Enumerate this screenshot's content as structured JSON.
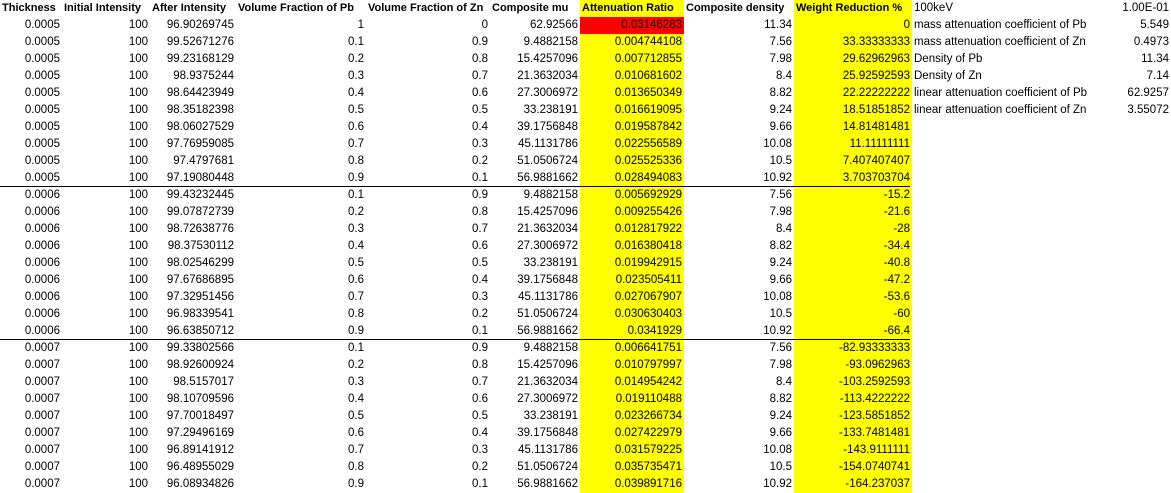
{
  "headers": [
    "Thickness",
    "Initial Intensity",
    "After Intensity",
    "Volume Fraction of Pb",
    "Volume Fraction of Zn",
    "Composite mu",
    "Attenuation Ratio",
    "Composite density",
    "Weight Reduction %"
  ],
  "rows": [
    [
      "0.0005",
      "100",
      "96.90269745",
      "1",
      "0",
      "62.92566",
      "0.03146283",
      "11.34",
      "0"
    ],
    [
      "0.0005",
      "100",
      "99.52671276",
      "0.1",
      "0.9",
      "9.4882158",
      "0.004744108",
      "7.56",
      "33.33333333"
    ],
    [
      "0.0005",
      "100",
      "99.23168129",
      "0.2",
      "0.8",
      "15.4257096",
      "0.007712855",
      "7.98",
      "29.62962963"
    ],
    [
      "0.0005",
      "100",
      "98.9375244",
      "0.3",
      "0.7",
      "21.3632034",
      "0.010681602",
      "8.4",
      "25.92592593"
    ],
    [
      "0.0005",
      "100",
      "98.64423949",
      "0.4",
      "0.6",
      "27.3006972",
      "0.013650349",
      "8.82",
      "22.22222222"
    ],
    [
      "0.0005",
      "100",
      "98.35182398",
      "0.5",
      "0.5",
      "33.238191",
      "0.016619095",
      "9.24",
      "18.51851852"
    ],
    [
      "0.0005",
      "100",
      "98.06027529",
      "0.6",
      "0.4",
      "39.1756848",
      "0.019587842",
      "9.66",
      "14.81481481"
    ],
    [
      "0.0005",
      "100",
      "97.76959085",
      "0.7",
      "0.3",
      "45.1131786",
      "0.022556589",
      "10.08",
      "11.11111111"
    ],
    [
      "0.0005",
      "100",
      "97.4797681",
      "0.8",
      "0.2",
      "51.0506724",
      "0.025525336",
      "10.5",
      "7.407407407"
    ],
    [
      "0.0005",
      "100",
      "97.19080448",
      "0.9",
      "0.1",
      "56.9881662",
      "0.028494083",
      "10.92",
      "3.703703704"
    ],
    [
      "0.0006",
      "100",
      "99.43232445",
      "0.1",
      "0.9",
      "9.4882158",
      "0.005692929",
      "7.56",
      "-15.2"
    ],
    [
      "0.0006",
      "100",
      "99.07872739",
      "0.2",
      "0.8",
      "15.4257096",
      "0.009255426",
      "7.98",
      "-21.6"
    ],
    [
      "0.0006",
      "100",
      "98.72638776",
      "0.3",
      "0.7",
      "21.3632034",
      "0.012817922",
      "8.4",
      "-28"
    ],
    [
      "0.0006",
      "100",
      "98.37530112",
      "0.4",
      "0.6",
      "27.3006972",
      "0.016380418",
      "8.82",
      "-34.4"
    ],
    [
      "0.0006",
      "100",
      "98.02546299",
      "0.5",
      "0.5",
      "33.238191",
      "0.019942915",
      "9.24",
      "-40.8"
    ],
    [
      "0.0006",
      "100",
      "97.67686895",
      "0.6",
      "0.4",
      "39.1756848",
      "0.023505411",
      "9.66",
      "-47.2"
    ],
    [
      "0.0006",
      "100",
      "97.32951456",
      "0.7",
      "0.3",
      "45.1131786",
      "0.027067907",
      "10.08",
      "-53.6"
    ],
    [
      "0.0006",
      "100",
      "96.98339541",
      "0.8",
      "0.2",
      "51.0506724",
      "0.030630403",
      "10.5",
      "-60"
    ],
    [
      "0.0006",
      "100",
      "96.63850712",
      "0.9",
      "0.1",
      "56.9881662",
      "0.0341929",
      "10.92",
      "-66.4"
    ],
    [
      "0.0007",
      "100",
      "99.33802566",
      "0.1",
      "0.9",
      "9.4882158",
      "0.006641751",
      "7.56",
      "-82.93333333"
    ],
    [
      "0.0007",
      "100",
      "98.92600924",
      "0.2",
      "0.8",
      "15.4257096",
      "0.010797997",
      "7.98",
      "-93.0962963"
    ],
    [
      "0.0007",
      "100",
      "98.5157017",
      "0.3",
      "0.7",
      "21.3632034",
      "0.014954242",
      "8.4",
      "-103.2592593"
    ],
    [
      "0.0007",
      "100",
      "98.10709596",
      "0.4",
      "0.6",
      "27.3006972",
      "0.019110488",
      "8.82",
      "-113.4222222"
    ],
    [
      "0.0007",
      "100",
      "97.70018497",
      "0.5",
      "0.5",
      "33.238191",
      "0.023266734",
      "9.24",
      "-123.5851852"
    ],
    [
      "0.0007",
      "100",
      "97.29496169",
      "0.6",
      "0.4",
      "39.1756848",
      "0.027422979",
      "9.66",
      "-133.7481481"
    ],
    [
      "0.0007",
      "100",
      "96.89141912",
      "0.7",
      "0.3",
      "45.1131786",
      "0.031579225",
      "10.08",
      "-143.9111111"
    ],
    [
      "0.0007",
      "100",
      "96.48955029",
      "0.8",
      "0.2",
      "51.0506724",
      "0.035735471",
      "10.5",
      "-154.0740741"
    ],
    [
      "0.0007",
      "100",
      "96.08934826",
      "0.9",
      "0.1",
      "56.9881662",
      "0.039891716",
      "10.92",
      "-164.237037"
    ]
  ],
  "side": [
    {
      "label": "100keV",
      "value": "1.00E-01"
    },
    {
      "label": "mass attenuation coefficient of Pb",
      "value": "5.549"
    },
    {
      "label": "mass attenuation coefficient of Zn",
      "value": "0.4973"
    },
    {
      "label": "Density of Pb",
      "value": "11.34"
    },
    {
      "label": "Density of Zn",
      "value": "7.14"
    },
    {
      "label": "linear attenuation coefficient of Pb",
      "value": "62.9257"
    },
    {
      "label": "linear attenuation coefficient of Zn",
      "value": "3.55072"
    }
  ],
  "colors": {
    "highlight": "#ffff00",
    "error": "#ff0000"
  }
}
